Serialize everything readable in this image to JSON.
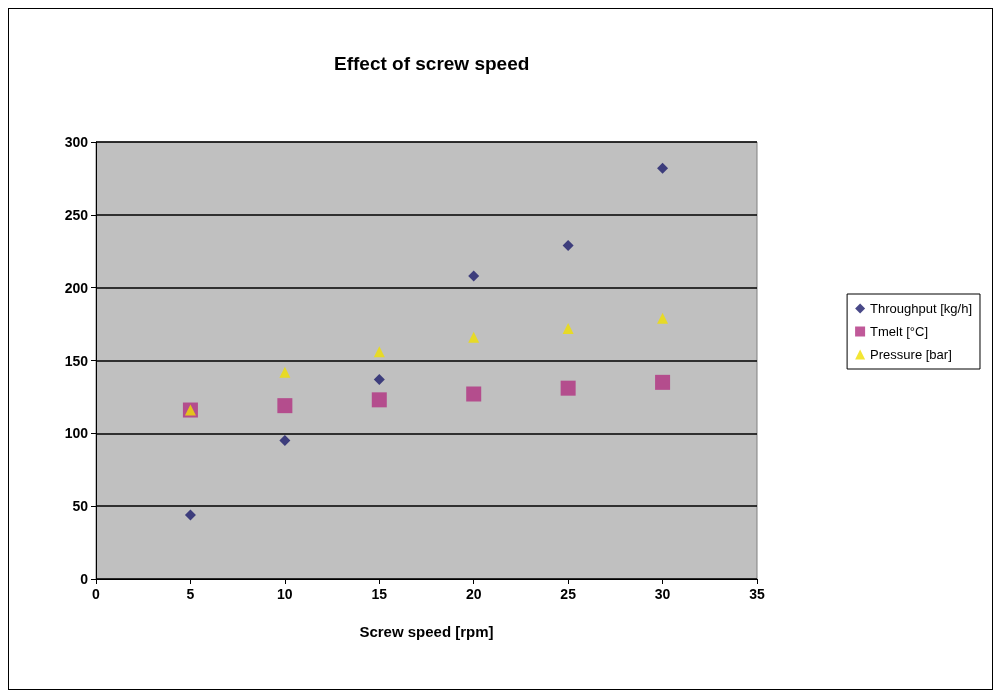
{
  "chart_data": {
    "type": "scatter",
    "title": "Effect of screw speed",
    "xlabel": "Screw speed [rpm]",
    "xlim": [
      0,
      35
    ],
    "xticks": [
      0,
      5,
      10,
      15,
      20,
      25,
      30,
      35
    ],
    "ylim": [
      0,
      300
    ],
    "yticks": [
      0,
      50,
      100,
      150,
      200,
      250,
      300
    ],
    "grid": "y",
    "legend": "right",
    "series": [
      {
        "name": "Throughput [kg/h]",
        "color": "#1c1c6a",
        "marker": "diamond",
        "x": [
          5,
          10,
          15,
          20,
          25,
          30
        ],
        "values": [
          44,
          95,
          137,
          208,
          229,
          282
        ]
      },
      {
        "name": "Tmelt [°C]",
        "color": "#b03080",
        "marker": "square",
        "x": [
          5,
          10,
          15,
          20,
          25,
          30
        ],
        "values": [
          116,
          119,
          123,
          127,
          131,
          135
        ]
      },
      {
        "name": "Pressure [bar]",
        "color": "#f0e000",
        "marker": "triangle",
        "x": [
          5,
          10,
          15,
          20,
          25,
          30
        ],
        "values": [
          116,
          142,
          156,
          166,
          172,
          179
        ]
      }
    ]
  }
}
